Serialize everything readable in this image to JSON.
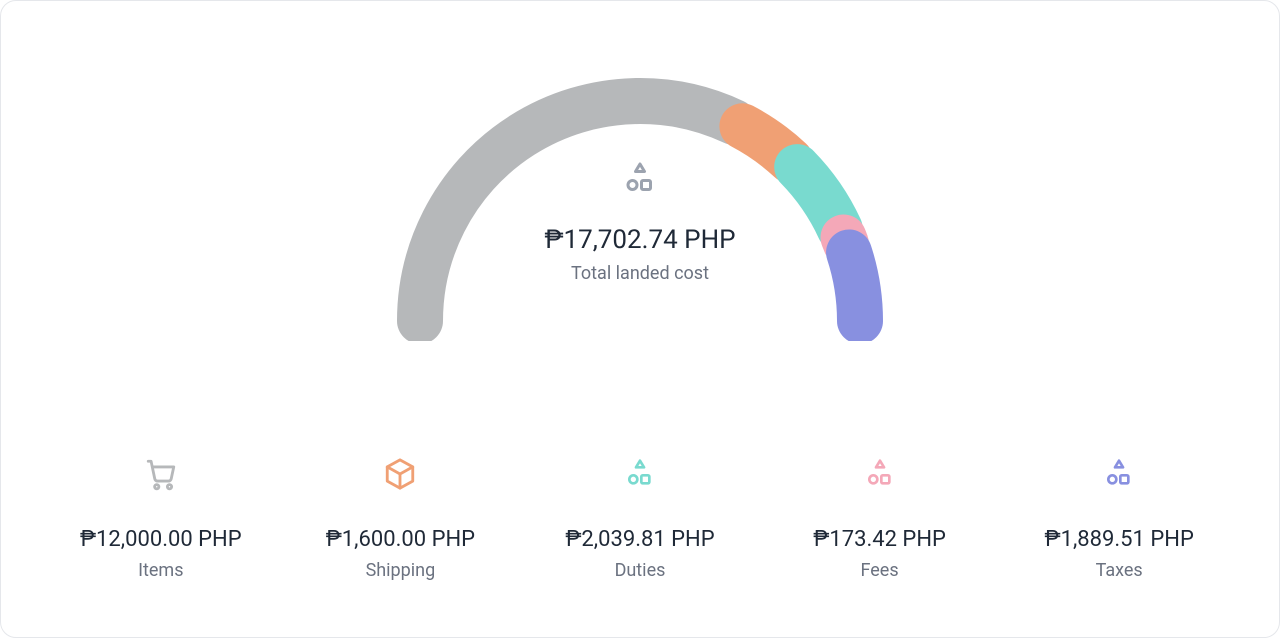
{
  "chart": {
    "type": "gauge",
    "total_value_display": "₱17,702.74 PHP",
    "total_label": "Total landed cost",
    "arc_thickness": 46,
    "gap_deg": 2.5,
    "background_color": "#ffffff",
    "border_color": "#e5e7eb",
    "segments": [
      {
        "key": "items",
        "value": 12000.0,
        "display": "₱12,000.00 PHP",
        "label": "Items",
        "color": "#b6b8ba",
        "icon": "cart"
      },
      {
        "key": "shipping",
        "value": 1600.0,
        "display": "₱1,600.00 PHP",
        "label": "Shipping",
        "color": "#f0a074",
        "icon": "box"
      },
      {
        "key": "duties",
        "value": 2039.81,
        "display": "₱2,039.81 PHP",
        "label": "Duties",
        "color": "#79dacf",
        "icon": "shapes"
      },
      {
        "key": "fees",
        "value": 173.42,
        "display": "₱173.42 PHP",
        "label": "Fees",
        "color": "#f4a8b8",
        "icon": "shapes"
      },
      {
        "key": "taxes",
        "value": 1889.51,
        "display": "₱1,889.51 PHP",
        "label": "Taxes",
        "color": "#8890e0",
        "icon": "shapes"
      }
    ],
    "center_icon_color": "#9ca3af",
    "value_font_size": 22,
    "label_font_size": 18,
    "label_color": "#6b7280",
    "value_color": "#1f2937"
  }
}
